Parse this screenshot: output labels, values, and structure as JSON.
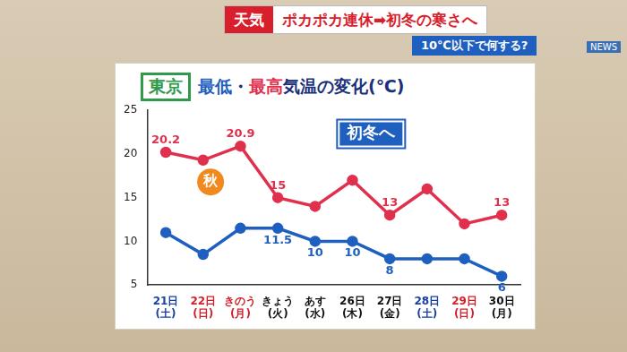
{
  "header": {
    "tag": "天気",
    "headline": "ポカポカ連休➡初冬の寒さへ",
    "subline": "10℃以下で何する?",
    "logo": "NEWS"
  },
  "chart_data": {
    "type": "line",
    "location": "東京",
    "title": "最低・最高気温の変化(℃)",
    "categories": [
      "21日(土)",
      "22日(日)",
      "きのう(月)",
      "きょう(火)",
      "あす(水)",
      "26日(木)",
      "27日(金)",
      "28日(土)",
      "29日(日)",
      "30日(月)"
    ],
    "series": [
      {
        "name": "最高",
        "color": "#e0304e",
        "values": [
          20.2,
          19.3,
          20.9,
          15,
          14,
          17,
          13,
          16,
          12,
          13
        ],
        "value_labels": [
          "20.2",
          null,
          "20.9",
          "15",
          null,
          null,
          "13",
          null,
          null,
          "13"
        ]
      },
      {
        "name": "最低",
        "color": "#1f5fbf",
        "values": [
          11,
          8.5,
          11.5,
          11.5,
          10,
          10,
          8,
          8,
          8,
          6
        ],
        "value_labels": [
          null,
          null,
          null,
          "11.5",
          "10",
          "10",
          "8",
          null,
          null,
          "6"
        ]
      }
    ],
    "ylim": [
      5,
      25
    ],
    "yticks": [
      5,
      10,
      15,
      20,
      25
    ],
    "grid": false,
    "data_labels": true,
    "marker": "circle",
    "annotations": [
      {
        "text": "秋"
      },
      {
        "text": "初冬へ"
      }
    ]
  }
}
